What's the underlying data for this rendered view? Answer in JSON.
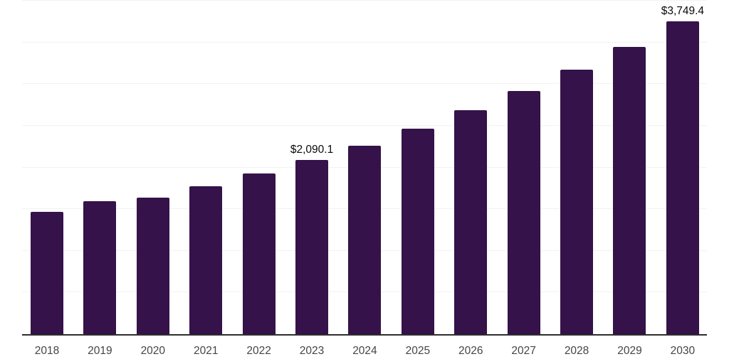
{
  "chart_data": {
    "type": "bar",
    "title": "",
    "xlabel": "",
    "ylabel": "",
    "categories": [
      "2018",
      "2019",
      "2020",
      "2021",
      "2022",
      "2023",
      "2024",
      "2025",
      "2026",
      "2027",
      "2028",
      "2029",
      "2030"
    ],
    "values": [
      1466,
      1594,
      1635,
      1778,
      1929,
      2090.1,
      2264,
      2466,
      2684,
      2915,
      3170,
      3448,
      3749.4
    ],
    "data_labels": [
      "",
      "",
      "",
      "",
      "",
      "$2,090.1",
      "",
      "",
      "",
      "",
      "",
      "",
      "$3,749.4"
    ],
    "ylim": [
      0,
      4000
    ],
    "gridline_step": 500,
    "grid": "horizontal",
    "legend_position": "none",
    "colors": {
      "bar": "#351249",
      "axis_line": "#2e2e2e",
      "gridline": "#f2f2f2",
      "data_label_text": "#0a0a0a",
      "tick_label_text": "#454545",
      "background": "#ffffff"
    }
  }
}
